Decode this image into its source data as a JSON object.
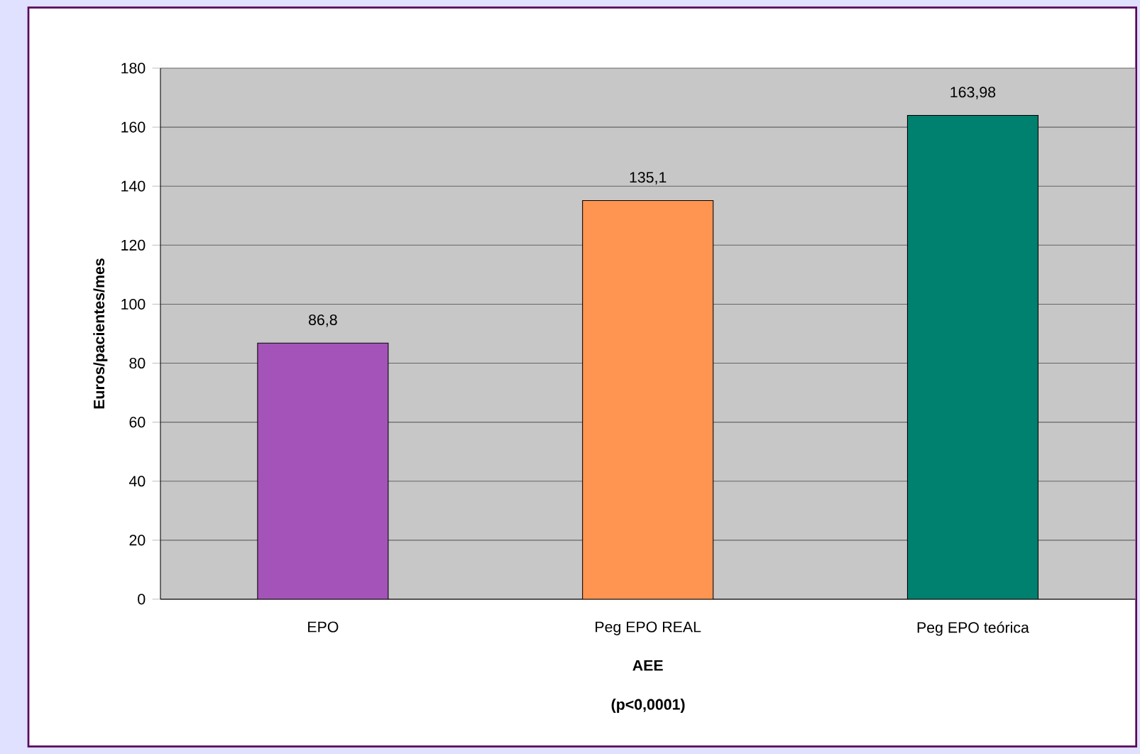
{
  "chart_data": {
    "type": "bar",
    "xlabel": "AEE",
    "ylabel": "Euros/pacientes/mes",
    "categories": [
      "EPO",
      "Peg EPO REAL",
      "Peg EPO teórica"
    ],
    "values": [
      86.8,
      135.1,
      163.98
    ],
    "value_labels": [
      "86,8",
      "135,1",
      "163,98"
    ],
    "colors": [
      "#a453b8",
      "#ff9550",
      "#00806e"
    ],
    "ylim": [
      0,
      180
    ],
    "yticks": [
      0,
      20,
      40,
      60,
      80,
      100,
      120,
      140,
      160,
      180
    ],
    "grid": "y",
    "annotations": [
      "(p<0,0001)"
    ]
  }
}
